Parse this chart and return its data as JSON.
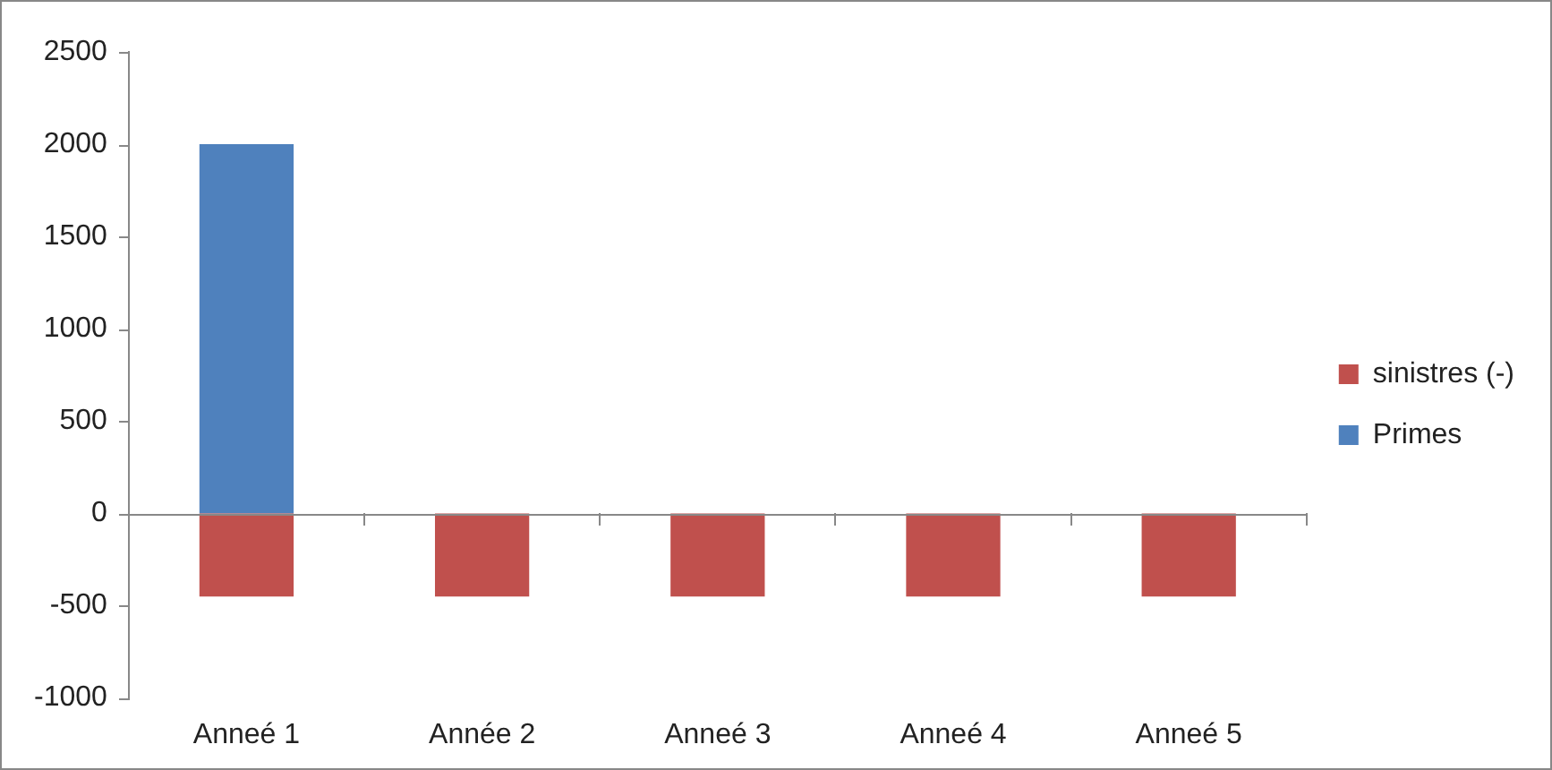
{
  "chart_data": {
    "type": "bar",
    "stacked": true,
    "categories": [
      "Anneé 1",
      "Année 2",
      "Anneé 3",
      "Anneé 4",
      "Anneé 5"
    ],
    "series": [
      {
        "name": "sinistres (-)",
        "color": "#c0504d",
        "values": [
          -450,
          -450,
          -450,
          -450,
          -450
        ]
      },
      {
        "name": "Primes",
        "color": "#4f81bd",
        "values": [
          2000,
          0,
          0,
          0,
          0
        ]
      }
    ],
    "ref_lines": [
      {
        "axis": "y",
        "value": 0,
        "color": "#888888"
      }
    ],
    "ylim": [
      -1000,
      2500
    ],
    "yticks": [
      -1000,
      -500,
      0,
      500,
      1000,
      1500,
      2000,
      2500
    ],
    "grid": false,
    "legend": "right"
  }
}
